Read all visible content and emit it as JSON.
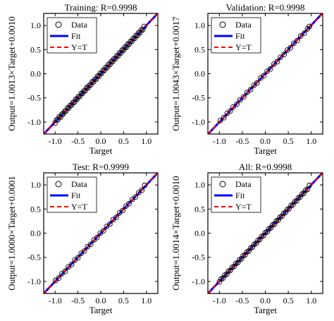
{
  "chart_data": [
    {
      "type": "scatter",
      "title": "Training: R=0.9998",
      "xlabel": "Target",
      "ylabel": "Output=1.0013×Target+0.0010",
      "xlim": [
        -1.25,
        1.25
      ],
      "ylim": [
        -1.25,
        1.25
      ],
      "xticks": [
        "-1.0",
        "-0.5",
        "0.0",
        "0.5",
        "1.0"
      ],
      "yticks": [
        "-1.0",
        "-0.5",
        "0.0",
        "0.5",
        "1.0"
      ],
      "fit": {
        "slope": 1.0013,
        "intercept": 0.001
      },
      "series": [
        {
          "name": "Data",
          "style": "open-circle",
          "color": "#000000"
        },
        {
          "name": "Fit",
          "style": "solid-line",
          "color": "#0000ff"
        },
        {
          "name": "Y=T",
          "style": "dashed-line",
          "color": "#ff0000"
        }
      ],
      "points_x": [
        -1.0,
        -0.97,
        -0.94,
        -0.91,
        -0.88,
        -0.85,
        -0.82,
        -0.79,
        -0.76,
        -0.73,
        -0.7,
        -0.67,
        -0.64,
        -0.61,
        -0.58,
        -0.55,
        -0.52,
        -0.49,
        -0.46,
        -0.43,
        -0.4,
        -0.37,
        -0.34,
        -0.31,
        -0.28,
        -0.25,
        -0.22,
        -0.19,
        -0.16,
        -0.13,
        -0.1,
        -0.07,
        -0.04,
        -0.01,
        0.02,
        0.05,
        0.08,
        0.11,
        0.14,
        0.17,
        0.2,
        0.23,
        0.26,
        0.29,
        0.32,
        0.35,
        0.38,
        0.41,
        0.44,
        0.47,
        0.5,
        0.53,
        0.56,
        0.59,
        0.62,
        0.65,
        0.68,
        0.71,
        0.74,
        0.77,
        0.8,
        0.83,
        0.86,
        0.89,
        0.92,
        0.95
      ],
      "points_y": [
        -1.02,
        -0.96,
        -0.95,
        -0.89,
        -0.9,
        -0.84,
        -0.83,
        -0.78,
        -0.77,
        -0.71,
        -0.71,
        -0.66,
        -0.65,
        -0.6,
        -0.59,
        -0.53,
        -0.53,
        -0.48,
        -0.47,
        -0.41,
        -0.41,
        -0.36,
        -0.35,
        -0.29,
        -0.29,
        -0.24,
        -0.23,
        -0.17,
        -0.17,
        -0.12,
        -0.11,
        -0.05,
        -0.05,
        0.01,
        0.01,
        0.07,
        0.07,
        0.13,
        0.13,
        0.19,
        0.19,
        0.25,
        0.25,
        0.31,
        0.31,
        0.37,
        0.37,
        0.43,
        0.43,
        0.49,
        0.49,
        0.55,
        0.55,
        0.61,
        0.61,
        0.67,
        0.67,
        0.73,
        0.73,
        0.79,
        0.79,
        0.85,
        0.85,
        0.91,
        0.91,
        0.98
      ]
    },
    {
      "type": "scatter",
      "title": "Validation: R=0.9998",
      "xlabel": "Target",
      "ylabel": "Output=1.0043×Target+0.0017",
      "xlim": [
        -1.25,
        1.25
      ],
      "ylim": [
        -1.25,
        1.25
      ],
      "xticks": [
        "-1.0",
        "-0.5",
        "0.0",
        "0.5",
        "1.0"
      ],
      "yticks": [
        "-1.0",
        "-0.5",
        "0.0",
        "0.5",
        "1.0"
      ],
      "fit": {
        "slope": 1.0043,
        "intercept": 0.0017
      },
      "series": [
        {
          "name": "Data",
          "style": "open-circle",
          "color": "#000000"
        },
        {
          "name": "Fit",
          "style": "solid-line",
          "color": "#0000ff"
        },
        {
          "name": "Y=T",
          "style": "dashed-line",
          "color": "#ff0000"
        }
      ],
      "points_x": [
        -0.98,
        -0.9,
        -0.83,
        -0.76,
        -0.7,
        -0.62,
        -0.55,
        -0.47,
        -0.4,
        -0.32,
        -0.25,
        -0.18,
        -0.1,
        -0.03,
        0.04,
        0.11,
        0.19,
        0.26,
        0.33,
        0.41,
        0.48,
        0.55,
        0.62,
        0.7,
        0.77,
        0.85,
        0.92,
        0.96
      ],
      "points_y": [
        -0.97,
        -0.91,
        -0.82,
        -0.77,
        -0.69,
        -0.63,
        -0.54,
        -0.48,
        -0.39,
        -0.33,
        -0.24,
        -0.19,
        -0.09,
        -0.04,
        0.05,
        0.1,
        0.2,
        0.25,
        0.34,
        0.4,
        0.49,
        0.54,
        0.63,
        0.69,
        0.78,
        0.84,
        0.93,
        0.98
      ]
    },
    {
      "type": "scatter",
      "title": "Test: R=0.9999",
      "xlabel": "Target",
      "ylabel": "Output=1.0000×Target+0.0001",
      "xlim": [
        -1.25,
        1.25
      ],
      "ylim": [
        -1.25,
        1.25
      ],
      "xticks": [
        "-1.0",
        "-0.5",
        "0.0",
        "0.5",
        "1.0"
      ],
      "yticks": [
        "-1.0",
        "-0.5",
        "0.0",
        "0.5",
        "1.0"
      ],
      "fit": {
        "slope": 1.0,
        "intercept": 0.0001
      },
      "series": [
        {
          "name": "Data",
          "style": "open-circle",
          "color": "#000000"
        },
        {
          "name": "Fit",
          "style": "solid-line",
          "color": "#0000ff"
        },
        {
          "name": "Y=T",
          "style": "dashed-line",
          "color": "#ff0000"
        }
      ],
      "points_x": [
        -0.99,
        -0.92,
        -0.85,
        -0.78,
        -0.71,
        -0.64,
        -0.57,
        -0.5,
        -0.43,
        -0.36,
        -0.29,
        -0.22,
        -0.15,
        -0.08,
        -0.01,
        0.06,
        0.13,
        0.2,
        0.27,
        0.34,
        0.41,
        0.48,
        0.55,
        0.62,
        0.69,
        0.76,
        0.83,
        0.9,
        0.96
      ],
      "points_y": [
        -0.98,
        -0.93,
        -0.84,
        -0.79,
        -0.7,
        -0.65,
        -0.56,
        -0.51,
        -0.42,
        -0.37,
        -0.28,
        -0.23,
        -0.14,
        -0.09,
        0.0,
        0.05,
        0.14,
        0.19,
        0.28,
        0.33,
        0.42,
        0.47,
        0.56,
        0.61,
        0.7,
        0.75,
        0.84,
        0.89,
        0.99
      ]
    },
    {
      "type": "scatter",
      "title": "All: R=0.9998",
      "xlabel": "Target",
      "ylabel": "Output=1.0014×Target+0.0010",
      "xlim": [
        -1.25,
        1.25
      ],
      "ylim": [
        -1.25,
        1.25
      ],
      "xticks": [
        "-1.0",
        "-0.5",
        "0.0",
        "0.5",
        "1.0"
      ],
      "yticks": [
        "-1.0",
        "-0.5",
        "0.0",
        "0.5",
        "1.0"
      ],
      "fit": {
        "slope": 1.0014,
        "intercept": 0.001
      },
      "series": [
        {
          "name": "Data",
          "style": "open-circle",
          "color": "#000000"
        },
        {
          "name": "Fit",
          "style": "solid-line",
          "color": "#0000ff"
        },
        {
          "name": "Y=T",
          "style": "dashed-line",
          "color": "#ff0000"
        }
      ],
      "points_x": [
        -1.0,
        -0.96,
        -0.92,
        -0.88,
        -0.84,
        -0.8,
        -0.76,
        -0.72,
        -0.68,
        -0.64,
        -0.6,
        -0.56,
        -0.52,
        -0.48,
        -0.44,
        -0.4,
        -0.36,
        -0.32,
        -0.28,
        -0.24,
        -0.2,
        -0.16,
        -0.12,
        -0.08,
        -0.04,
        0.0,
        0.04,
        0.08,
        0.12,
        0.16,
        0.2,
        0.24,
        0.28,
        0.32,
        0.36,
        0.4,
        0.44,
        0.48,
        0.52,
        0.56,
        0.6,
        0.64,
        0.68,
        0.72,
        0.76,
        0.8,
        0.84,
        0.88,
        0.92,
        0.96
      ],
      "points_y": [
        -1.01,
        -0.95,
        -0.93,
        -0.87,
        -0.85,
        -0.79,
        -0.77,
        -0.71,
        -0.69,
        -0.63,
        -0.61,
        -0.55,
        -0.53,
        -0.47,
        -0.45,
        -0.39,
        -0.37,
        -0.31,
        -0.29,
        -0.23,
        -0.21,
        -0.15,
        -0.13,
        -0.07,
        -0.05,
        0.01,
        0.03,
        0.09,
        0.11,
        0.17,
        0.19,
        0.25,
        0.27,
        0.33,
        0.35,
        0.41,
        0.43,
        0.49,
        0.51,
        0.57,
        0.59,
        0.65,
        0.67,
        0.73,
        0.75,
        0.81,
        0.83,
        0.89,
        0.91,
        0.99
      ]
    }
  ]
}
